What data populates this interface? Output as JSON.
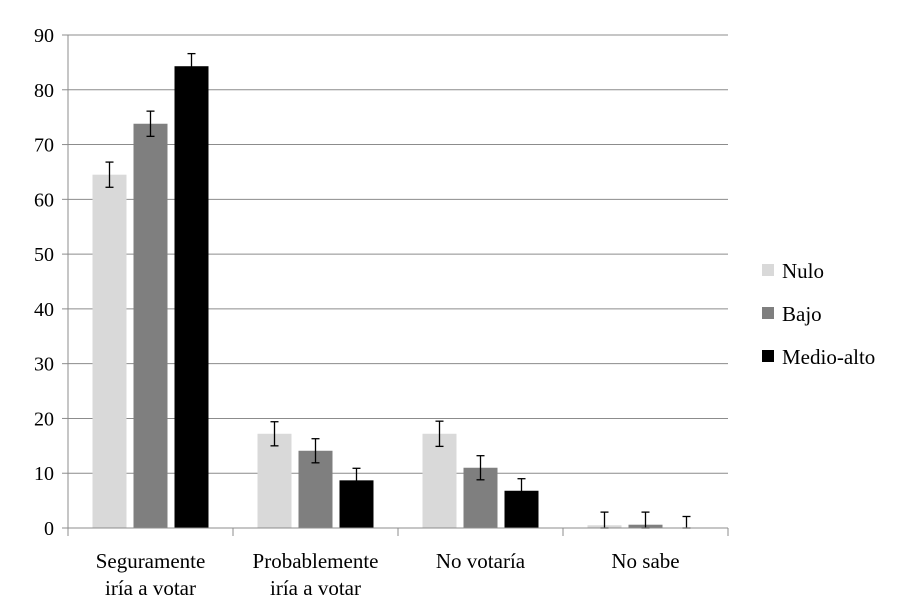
{
  "chart_data": {
    "type": "bar",
    "categories": [
      [
        "Seguramente",
        "iría a votar"
      ],
      [
        "Probablemente",
        "iría a votar"
      ],
      [
        "No votaría"
      ],
      [
        "No sabe"
      ]
    ],
    "series": [
      {
        "name": "Nulo",
        "color": "#d9d9d9",
        "values": [
          64.5,
          17.2,
          17.2,
          0.5
        ],
        "error": [
          2.3,
          2.2,
          2.3,
          2.4
        ]
      },
      {
        "name": "Bajo",
        "color": "#7f7f7f",
        "values": [
          73.8,
          14.1,
          11.0,
          0.6
        ],
        "error": [
          2.3,
          2.2,
          2.2,
          2.3
        ]
      },
      {
        "name": "Medio-alto",
        "color": "#000000",
        "values": [
          84.3,
          8.7,
          6.8,
          0.0
        ],
        "error": [
          2.3,
          2.2,
          2.2,
          2.1
        ]
      }
    ],
    "ylim": [
      0,
      90
    ],
    "yticks": [
      0,
      10,
      20,
      30,
      40,
      50,
      60,
      70,
      80,
      90
    ],
    "grid": true,
    "legend_position": "right",
    "title": "",
    "xlabel": "",
    "ylabel": ""
  }
}
